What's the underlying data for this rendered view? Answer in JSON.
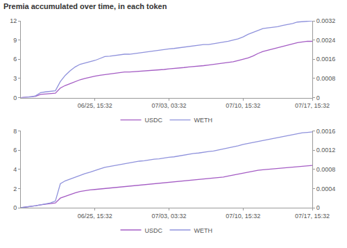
{
  "chart_data": [
    {
      "type": "line",
      "title": "Premia accumulated over time, in each token",
      "categories": [
        null,
        null,
        null,
        null,
        null,
        null,
        null,
        null,
        null,
        null,
        null,
        null,
        null,
        null,
        null,
        "06/25, 15:32",
        null,
        null,
        null,
        null,
        null,
        null,
        null,
        null,
        null,
        null,
        null,
        null,
        null,
        null,
        "07/03, 03:32",
        null,
        null,
        null,
        null,
        null,
        null,
        null,
        null,
        null,
        null,
        null,
        null,
        null,
        null,
        "07/10, 15:32",
        null,
        null,
        null,
        null,
        null,
        null,
        null,
        null,
        null,
        null,
        null,
        null,
        null,
        "07/17, 15:32"
      ],
      "series": [
        {
          "name": "USDC",
          "color": "#a45cc4",
          "values": [
            0,
            0.05,
            0.1,
            0.2,
            0.5,
            0.55,
            0.6,
            0.7,
            1.5,
            1.9,
            2.2,
            2.5,
            2.8,
            3.0,
            3.2,
            3.35,
            3.5,
            3.6,
            3.7,
            3.8,
            3.9,
            4.0,
            4.0,
            4.05,
            4.1,
            4.2,
            4.2,
            4.25,
            4.3,
            4.4,
            4.5,
            4.55,
            4.6,
            4.7,
            4.8,
            4.85,
            4.9,
            5.0,
            5.1,
            5.2,
            5.3,
            5.4,
            5.5,
            5.6,
            5.8,
            6.0,
            6.2,
            6.5,
            6.9,
            7.2,
            7.4,
            7.6,
            7.8,
            8.0,
            8.2,
            8.4,
            8.6,
            8.7,
            8.8,
            8.8
          ]
        },
        {
          "name": "WETH",
          "color": "#8f92dc",
          "axis": "y2",
          "values": [
            0,
            1e-05,
            3e-05,
            8e-05,
            0.00021,
            0.00024,
            0.00027,
            0.00029,
            0.00067,
            0.00093,
            0.00112,
            0.00128,
            0.00139,
            0.00144,
            0.00149,
            0.00155,
            0.00163,
            0.00171,
            0.00173,
            0.00176,
            0.00179,
            0.00181,
            0.00181,
            0.00184,
            0.00187,
            0.00189,
            0.00192,
            0.00195,
            0.00197,
            0.002,
            0.00203,
            0.00205,
            0.00208,
            0.00211,
            0.00213,
            0.00216,
            0.00219,
            0.00221,
            0.00221,
            0.00224,
            0.00227,
            0.00232,
            0.00235,
            0.0024,
            0.00245,
            0.00253,
            0.00264,
            0.00272,
            0.0028,
            0.00288,
            0.00291,
            0.00293,
            0.00296,
            0.00301,
            0.00304,
            0.00309,
            0.00315,
            0.00317,
            0.0032,
            0.0032
          ]
        }
      ],
      "ylim": [
        0,
        12
      ],
      "yticks": [
        0,
        3,
        6,
        9,
        12
      ],
      "y2lim": [
        0,
        0.0032
      ],
      "y2ticks": [
        0,
        0.0008,
        0.0016,
        0.0024,
        0.0032
      ],
      "grid": false,
      "legend": "bottom"
    },
    {
      "type": "line",
      "categories": [
        null,
        null,
        null,
        null,
        null,
        null,
        null,
        null,
        null,
        null,
        null,
        null,
        null,
        null,
        null,
        "06/25, 15:32",
        null,
        null,
        null,
        null,
        null,
        null,
        null,
        null,
        null,
        null,
        null,
        null,
        null,
        null,
        "07/03, 03:32",
        null,
        null,
        null,
        null,
        null,
        null,
        null,
        null,
        null,
        null,
        null,
        null,
        null,
        null,
        "07/10, 15:32",
        null,
        null,
        null,
        null,
        null,
        null,
        null,
        null,
        null,
        null,
        null,
        null,
        null,
        "07/17, 15:32"
      ],
      "series": [
        {
          "name": "USDC",
          "color": "#a45cc4",
          "values": [
            0,
            0.05,
            0.1,
            0.2,
            0.3,
            0.35,
            0.4,
            0.5,
            1.0,
            1.2,
            1.4,
            1.55,
            1.7,
            1.8,
            1.85,
            1.9,
            1.95,
            2.0,
            2.0,
            2.05,
            2.1,
            2.15,
            2.2,
            2.3,
            2.35,
            2.4,
            2.45,
            2.5,
            2.55,
            2.6,
            2.65,
            2.7,
            2.75,
            2.8,
            2.85,
            2.9,
            2.95,
            3.0,
            3.05,
            3.1,
            3.15,
            3.2,
            3.3,
            3.4,
            3.5,
            3.6,
            3.75,
            3.85,
            3.9,
            3.95,
            4.0,
            4.05,
            4.1,
            4.15,
            4.2,
            4.25,
            4.3,
            4.35,
            4.4,
            4.4
          ]
        },
        {
          "name": "WETH",
          "color": "#8f92dc",
          "axis": "y2",
          "values": [
            0,
            1e-05,
            2e-05,
            4e-05,
            6e-05,
            8e-05,
            0.0001,
            0.00014,
            0.0005,
            0.00056,
            0.0006,
            0.00064,
            0.00068,
            0.00071,
            0.00074,
            0.00078,
            0.00081,
            0.00084,
            0.00086,
            0.00088,
            0.0009,
            0.00092,
            0.00094,
            0.00096,
            0.00097,
            0.00098,
            0.001,
            0.00101,
            0.00102,
            0.00104,
            0.00105,
            0.00106,
            0.00108,
            0.0011,
            0.00112,
            0.00113,
            0.00114,
            0.00116,
            0.00117,
            0.00118,
            0.0012,
            0.00122,
            0.00124,
            0.00126,
            0.00129,
            0.00132,
            0.00134,
            0.00136,
            0.00138,
            0.0014,
            0.00142,
            0.00144,
            0.00146,
            0.00148,
            0.0015,
            0.00152,
            0.00154,
            0.00156,
            0.00157,
            0.00158
          ]
        }
      ],
      "ylim": [
        0,
        8
      ],
      "yticks": [
        0,
        2,
        4,
        6,
        8
      ],
      "y2lim": [
        0,
        0.0016
      ],
      "y2ticks": [
        0,
        0.0004,
        0.0008,
        0.0012,
        0.0016
      ],
      "grid": false,
      "legend": "bottom"
    }
  ]
}
